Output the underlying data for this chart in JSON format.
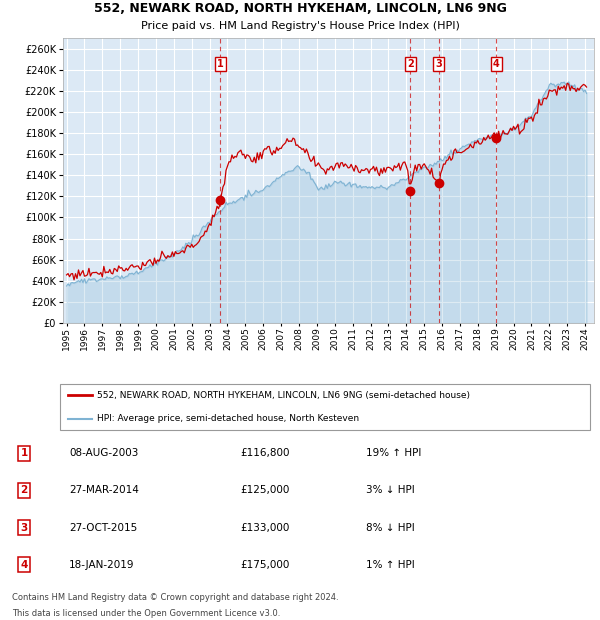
{
  "title1": "552, NEWARK ROAD, NORTH HYKEHAM, LINCOLN, LN6 9NG",
  "title2": "Price paid vs. HM Land Registry's House Price Index (HPI)",
  "legend_line1": "552, NEWARK ROAD, NORTH HYKEHAM, LINCOLN, LN6 9NG (semi-detached house)",
  "legend_line2": "HPI: Average price, semi-detached house, North Kesteven",
  "footer1": "Contains HM Land Registry data © Crown copyright and database right 2024.",
  "footer2": "This data is licensed under the Open Government Licence v3.0.",
  "transactions": [
    {
      "num": 1,
      "date": "08-AUG-2003",
      "price": "£116,800",
      "pct": "19% ↑ HPI",
      "year": 2003.6,
      "price_val": 116800
    },
    {
      "num": 2,
      "date": "27-MAR-2014",
      "price": "£125,000",
      "pct": "3% ↓ HPI",
      "year": 2014.23,
      "price_val": 125000
    },
    {
      "num": 3,
      "date": "27-OCT-2015",
      "price": "£133,000",
      "pct": "8% ↓ HPI",
      "year": 2015.82,
      "price_val": 133000
    },
    {
      "num": 4,
      "date": "18-JAN-2019",
      "price": "£175,000",
      "pct": "1% ↑ HPI",
      "year": 2019.04,
      "price_val": 175000
    }
  ],
  "background_color": "#dce9f5",
  "red_color": "#cc0000",
  "blue_color": "#7fb3d3",
  "grid_color": "#ffffff",
  "ylim": [
    0,
    270000
  ],
  "yticks": [
    0,
    20000,
    40000,
    60000,
    80000,
    100000,
    120000,
    140000,
    160000,
    180000,
    200000,
    220000,
    240000,
    260000
  ],
  "xtick_years": [
    1995,
    1996,
    1997,
    1998,
    1999,
    2000,
    2001,
    2002,
    2003,
    2004,
    2005,
    2006,
    2007,
    2008,
    2009,
    2010,
    2011,
    2012,
    2013,
    2014,
    2015,
    2016,
    2017,
    2018,
    2019,
    2020,
    2021,
    2022,
    2023,
    2024
  ],
  "xmin": 1994.8,
  "xmax": 2024.5
}
